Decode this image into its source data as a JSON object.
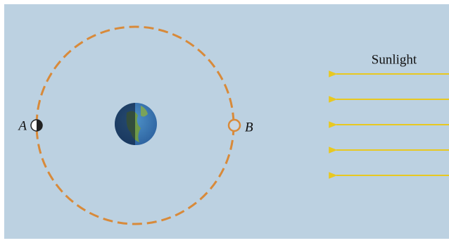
{
  "labels": {
    "sunlight": "Sunlight",
    "moon_a": "A",
    "moon_b": "B"
  }
}
